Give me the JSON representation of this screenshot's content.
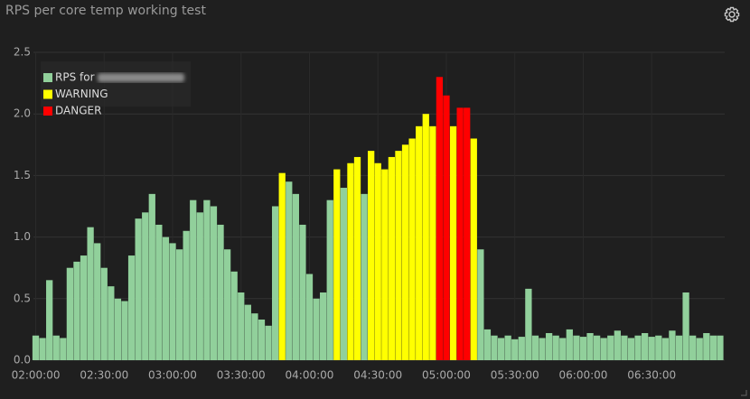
{
  "chart_data": {
    "type": "bar",
    "title": "RPS per core temp working test",
    "x": [
      "02:00:00",
      "02:03:00",
      "02:06:00",
      "02:09:00",
      "02:12:00",
      "02:15:00",
      "02:18:00",
      "02:21:00",
      "02:24:00",
      "02:27:00",
      "02:30:00",
      "02:33:00",
      "02:36:00",
      "02:39:00",
      "02:42:00",
      "02:45:00",
      "02:48:00",
      "02:51:00",
      "02:54:00",
      "02:57:00",
      "03:00:00",
      "03:03:00",
      "03:06:00",
      "03:09:00",
      "03:12:00",
      "03:15:00",
      "03:18:00",
      "03:21:00",
      "03:24:00",
      "03:27:00",
      "03:30:00",
      "03:33:00",
      "03:36:00",
      "03:39:00",
      "03:42:00",
      "03:45:00",
      "03:48:00",
      "03:51:00",
      "03:54:00",
      "03:57:00",
      "04:00:00",
      "04:03:00",
      "04:06:00",
      "04:09:00",
      "04:12:00",
      "04:15:00",
      "04:18:00",
      "04:21:00",
      "04:24:00",
      "04:27:00",
      "04:30:00",
      "04:33:00",
      "04:36:00",
      "04:39:00",
      "04:42:00",
      "04:45:00",
      "04:48:00",
      "04:51:00",
      "04:54:00",
      "04:57:00",
      "05:00:00",
      "05:03:00",
      "05:06:00",
      "05:09:00",
      "05:12:00",
      "05:15:00",
      "05:18:00",
      "05:21:00",
      "05:24:00",
      "05:27:00",
      "05:30:00",
      "05:33:00",
      "05:36:00",
      "05:39:00",
      "05:42:00",
      "05:45:00",
      "05:48:00",
      "05:51:00",
      "05:54:00",
      "05:57:00",
      "06:00:00",
      "06:03:00",
      "06:06:00",
      "06:09:00",
      "06:12:00",
      "06:15:00",
      "06:18:00",
      "06:21:00",
      "06:24:00",
      "06:27:00",
      "06:30:00",
      "06:33:00",
      "06:36:00",
      "06:39:00",
      "06:42:00",
      "06:45:00",
      "06:48:00",
      "06:51:00",
      "06:54:00",
      "06:57:00",
      "07:00:00"
    ],
    "series": [
      {
        "name": "RPS for",
        "color": "#91d09b",
        "values": [
          0.2,
          0.18,
          0.65,
          0.2,
          0.18,
          0.75,
          0.8,
          0.85,
          1.08,
          0.95,
          0.75,
          0.6,
          0.5,
          0.48,
          0.85,
          1.15,
          1.2,
          1.35,
          1.1,
          1.0,
          0.95,
          0.9,
          1.05,
          1.3,
          1.2,
          1.3,
          1.25,
          1.1,
          0.9,
          0.72,
          0.55,
          0.45,
          0.38,
          0.33,
          0.28,
          1.25,
          null,
          1.45,
          1.35,
          1.1,
          0.7,
          0.5,
          0.55,
          1.3,
          null,
          1.4,
          null,
          null,
          1.35,
          null,
          null,
          null,
          null,
          null,
          null,
          null,
          null,
          null,
          null,
          null,
          null,
          null,
          null,
          null,
          null,
          0.9,
          0.25,
          0.2,
          0.18,
          0.2,
          0.17,
          0.19,
          0.58,
          0.2,
          0.18,
          0.22,
          0.2,
          0.18,
          0.25,
          0.2,
          0.19,
          0.22,
          0.2,
          0.18,
          0.2,
          0.24,
          0.2,
          0.18,
          0.2,
          0.22,
          0.19,
          0.2,
          0.18,
          0.24,
          0.2,
          0.55,
          0.2,
          0.18,
          0.22,
          0.2,
          0.2
        ]
      },
      {
        "name": "WARNING",
        "color": "#ffff00",
        "values": [
          null,
          null,
          null,
          null,
          null,
          null,
          null,
          null,
          null,
          null,
          null,
          null,
          null,
          null,
          null,
          null,
          null,
          null,
          null,
          null,
          null,
          null,
          null,
          null,
          null,
          null,
          null,
          null,
          null,
          null,
          null,
          null,
          null,
          null,
          null,
          null,
          1.52,
          null,
          null,
          null,
          null,
          null,
          null,
          null,
          1.55,
          null,
          1.6,
          1.65,
          null,
          1.7,
          1.6,
          1.55,
          1.65,
          1.7,
          1.75,
          1.8,
          1.9,
          2.0,
          1.9,
          null,
          null,
          1.9,
          null,
          null,
          1.8,
          null,
          null,
          null,
          null,
          null,
          null,
          null,
          null,
          null,
          null,
          null,
          null,
          null,
          null,
          null,
          null,
          null,
          null,
          null,
          null,
          null,
          null,
          null,
          null,
          null,
          null,
          null,
          null,
          null,
          null,
          null,
          null,
          null,
          null,
          null,
          null
        ]
      },
      {
        "name": "DANGER",
        "color": "#ff0000",
        "values": [
          null,
          null,
          null,
          null,
          null,
          null,
          null,
          null,
          null,
          null,
          null,
          null,
          null,
          null,
          null,
          null,
          null,
          null,
          null,
          null,
          null,
          null,
          null,
          null,
          null,
          null,
          null,
          null,
          null,
          null,
          null,
          null,
          null,
          null,
          null,
          null,
          null,
          null,
          null,
          null,
          null,
          null,
          null,
          null,
          null,
          null,
          null,
          null,
          null,
          null,
          null,
          null,
          null,
          null,
          null,
          null,
          null,
          null,
          null,
          2.3,
          2.15,
          null,
          2.05,
          2.05,
          null,
          null,
          null,
          null,
          null,
          null,
          null,
          null,
          null,
          null,
          null,
          null,
          null,
          null,
          null,
          null,
          null,
          null,
          null,
          null,
          null,
          null,
          null,
          null,
          null,
          null,
          null,
          null,
          null,
          null,
          null,
          null,
          null,
          null,
          null,
          null,
          null
        ]
      }
    ],
    "xlim": [
      "01:59:00",
      "07:02:00"
    ],
    "xticks": [
      "02:00:00",
      "02:30:00",
      "03:00:00",
      "03:30:00",
      "04:00:00",
      "04:30:00",
      "05:00:00",
      "05:30:00",
      "06:00:00",
      "06:30:00"
    ],
    "ylim": [
      0,
      2.5
    ],
    "yticks": [
      {
        "value": 0,
        "label": "0.0"
      },
      0.5,
      {
        "value": 1,
        "label": "1.0"
      },
      1.5,
      {
        "value": 2,
        "label": "2.0"
      },
      2.5
    ],
    "grid": true,
    "legend": "top-left"
  }
}
